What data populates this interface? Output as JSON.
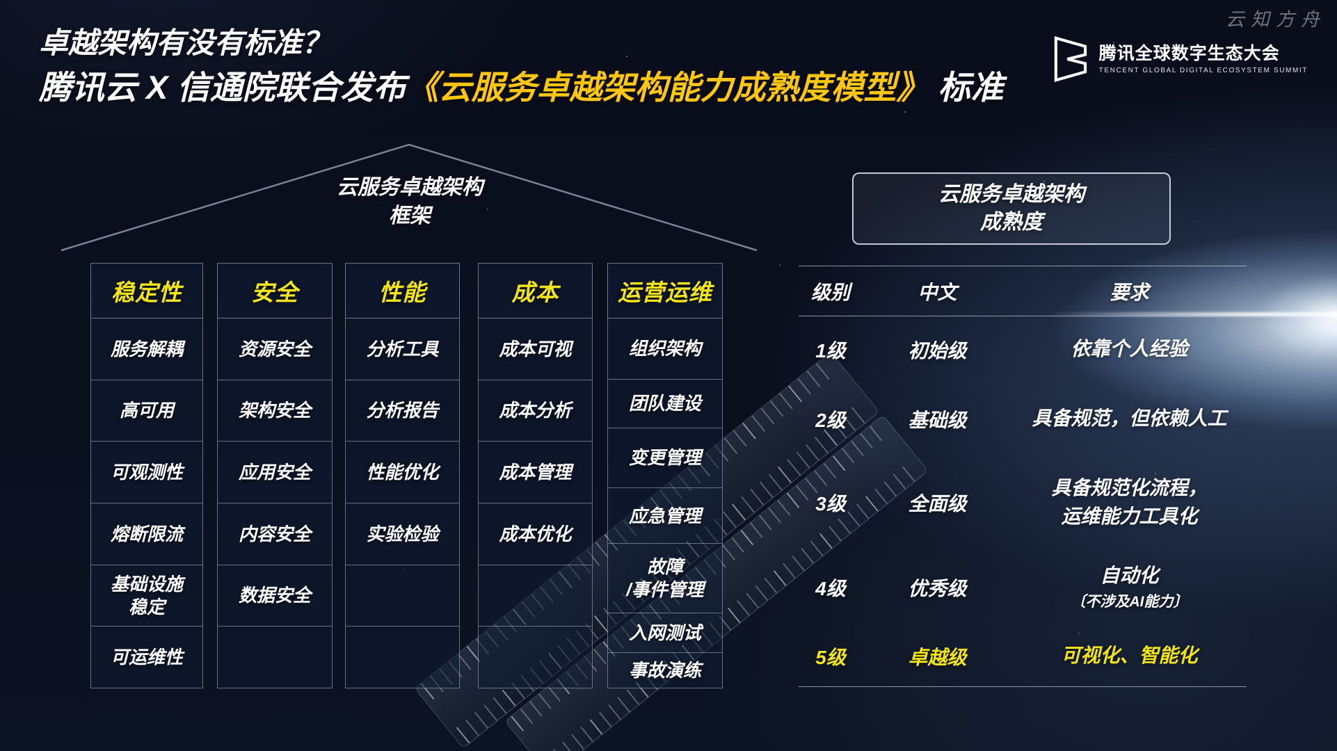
{
  "watermark": "云知方舟",
  "title": {
    "line1": "卓越架构有没有标准？",
    "line2_prefix": "腾讯云 X 信通院联合发布",
    "line2_highlight": "《云服务卓越架构能力成熟度模型》",
    "line2_suffix": " 标准"
  },
  "logo": {
    "cn": "腾讯全球数字生态大会",
    "en": "TENCENT GLOBAL DIGITAL ECOSYSTEM SUMMIT"
  },
  "framework": {
    "roof_title_line1": "云服务卓越架构",
    "roof_title_line2": "框架",
    "columns": [
      {
        "header": "稳定性",
        "items": [
          "服务解耦",
          "高可用",
          "可观测性",
          "熔断限流",
          "基础设施\n稳定",
          "可运维性"
        ],
        "empty_rows": 0
      },
      {
        "header": "安全",
        "items": [
          "资源安全",
          "架构安全",
          "应用安全",
          "内容安全",
          "数据安全"
        ],
        "empty_rows": 1
      },
      {
        "header": "性能",
        "items": [
          "分析工具",
          "分析报告",
          "性能优化",
          "实验检验"
        ],
        "empty_rows": 2
      },
      {
        "header": "成本",
        "items": [
          "成本可视",
          "成本分析",
          "成本管理",
          "成本优化"
        ],
        "empty_rows": 2
      },
      {
        "header": "运营运维",
        "items": [
          "组织架构",
          "团队建设",
          "变更管理",
          "应急管理",
          "故障\n/事件管理",
          "入网测试",
          "事故演练"
        ],
        "empty_rows": 0
      }
    ]
  },
  "maturity": {
    "box_title_line1": "云服务卓越架构",
    "box_title_line2": "成熟度",
    "headers": [
      "级别",
      "中文",
      "要求"
    ],
    "rows": [
      {
        "level": "1级",
        "name": "初始级",
        "req": "依靠个人经验",
        "req_note": "",
        "highlight": false
      },
      {
        "level": "2级",
        "name": "基础级",
        "req": "具备规范，但依赖人工",
        "req_note": "",
        "highlight": false
      },
      {
        "level": "3级",
        "name": "全面级",
        "req": "具备规范化流程，\n运维能力工具化",
        "req_note": "",
        "highlight": false
      },
      {
        "level": "4级",
        "name": "优秀级",
        "req": "自动化",
        "req_note": "〔不涉及AI能力〕",
        "highlight": false
      },
      {
        "level": "5级",
        "name": "卓越级",
        "req": "可视化、智能化",
        "req_note": "",
        "highlight": true
      }
    ]
  },
  "background": {
    "ruler_numbers_a": [
      "5",
      "3",
      "1",
      "0"
    ],
    "ruler_numbers_b": [
      "9",
      "1",
      "0",
      "3"
    ]
  },
  "colors": {
    "accent_yellow": "#f2e41c",
    "title_gold": "#ffc613",
    "background_navy": "#0b101f"
  }
}
